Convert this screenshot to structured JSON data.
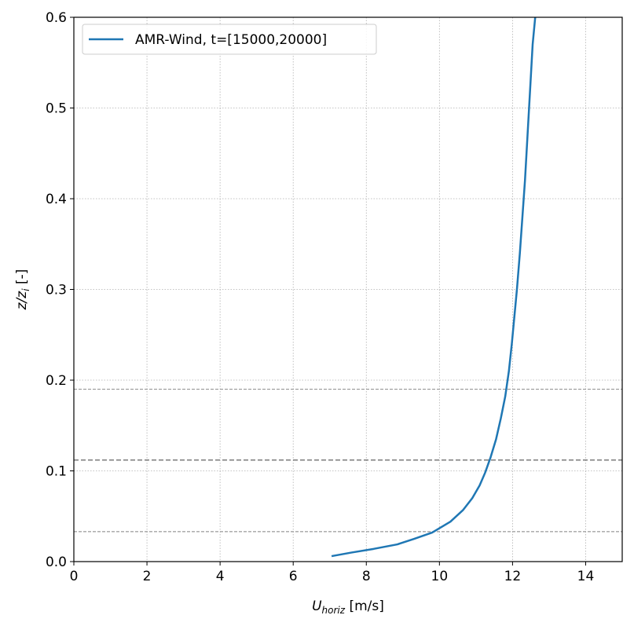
{
  "chart_data": {
    "type": "line",
    "title": "",
    "xlabel": {
      "main": "U",
      "sub": "horiz",
      "rest": " [m/s]"
    },
    "ylabel": {
      "main": "z/z",
      "sub": "i",
      "rest": " [-]"
    },
    "xlim": [
      0,
      15
    ],
    "ylim": [
      0,
      0.6
    ],
    "xticks": [
      0,
      2,
      4,
      6,
      8,
      10,
      12,
      14
    ],
    "yticks": [
      0.0,
      0.1,
      0.2,
      0.3,
      0.4,
      0.5,
      0.6
    ],
    "xtick_labels": [
      "0",
      "2",
      "4",
      "6",
      "8",
      "10",
      "12",
      "14"
    ],
    "ytick_labels": [
      "0.0",
      "0.1",
      "0.2",
      "0.3",
      "0.4",
      "0.5",
      "0.6"
    ],
    "grid": true,
    "legend_position": "top-left",
    "series": [
      {
        "name": "AMR-Wind, t=[15000,20000]",
        "color": "#1f77b4",
        "x": [
          7.05,
          7.6,
          8.2,
          8.85,
          9.3,
          9.8,
          10.3,
          10.65,
          10.9,
          11.1,
          11.25,
          11.4,
          11.55,
          11.68,
          11.8,
          11.9,
          11.98,
          12.05,
          12.12,
          12.2,
          12.27,
          12.34,
          12.41,
          12.48,
          12.55,
          12.62
        ],
        "y": [
          0.006,
          0.01,
          0.014,
          0.019,
          0.025,
          0.032,
          0.044,
          0.057,
          0.07,
          0.084,
          0.098,
          0.115,
          0.135,
          0.158,
          0.182,
          0.21,
          0.24,
          0.27,
          0.3,
          0.34,
          0.38,
          0.42,
          0.47,
          0.52,
          0.57,
          0.6
        ]
      }
    ],
    "reference_lines": [
      {
        "y": 0.033,
        "style": "dashed",
        "color": "#808080",
        "weight": "thin"
      },
      {
        "y": 0.112,
        "style": "dashed",
        "color": "#808080",
        "weight": "thick"
      },
      {
        "y": 0.19,
        "style": "dashed",
        "color": "#808080",
        "weight": "thin"
      }
    ]
  }
}
